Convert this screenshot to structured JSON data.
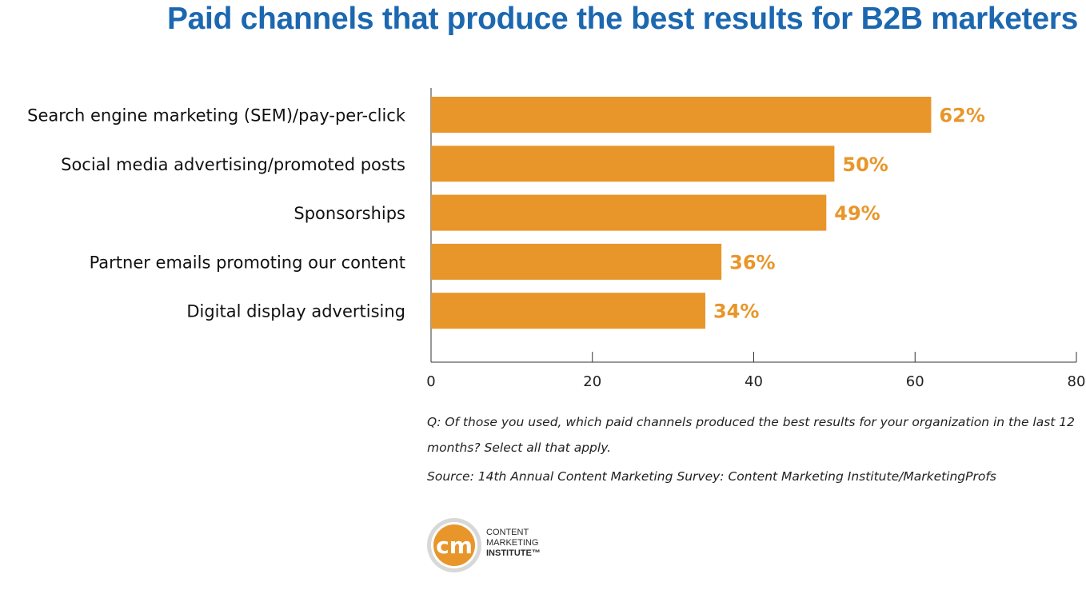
{
  "title": "Paid channels that produce the best results for B2B marketers",
  "chart_data": {
    "type": "bar",
    "orientation": "horizontal",
    "categories": [
      "Search engine marketing (SEM)/pay-per-click",
      "Social media advertising/promoted posts",
      "Sponsorships",
      "Partner emails promoting our content",
      "Digital display advertising"
    ],
    "values": [
      62,
      50,
      49,
      36,
      34
    ],
    "value_labels": [
      "62%",
      "50%",
      "49%",
      "36%",
      "34%"
    ],
    "xlim": [
      0,
      80
    ],
    "xticks": [
      "0",
      "20",
      "40",
      "60",
      "80"
    ],
    "grid": false,
    "bar_color": "#e8962a",
    "label_color": "#e8962a"
  },
  "notes": {
    "question": "Q: Of those you used, which paid channels produced the best results for your organization in the last 12 months? Select all that apply.",
    "source": "Source: 14th Annual Content Marketing Survey: Content Marketing Institute/MarketingProfs"
  },
  "logo": {
    "mark": "cm",
    "line1": "CONTENT",
    "line2": "MARKETING",
    "line3": "INSTITUTE™",
    "color": "#e8962a"
  }
}
